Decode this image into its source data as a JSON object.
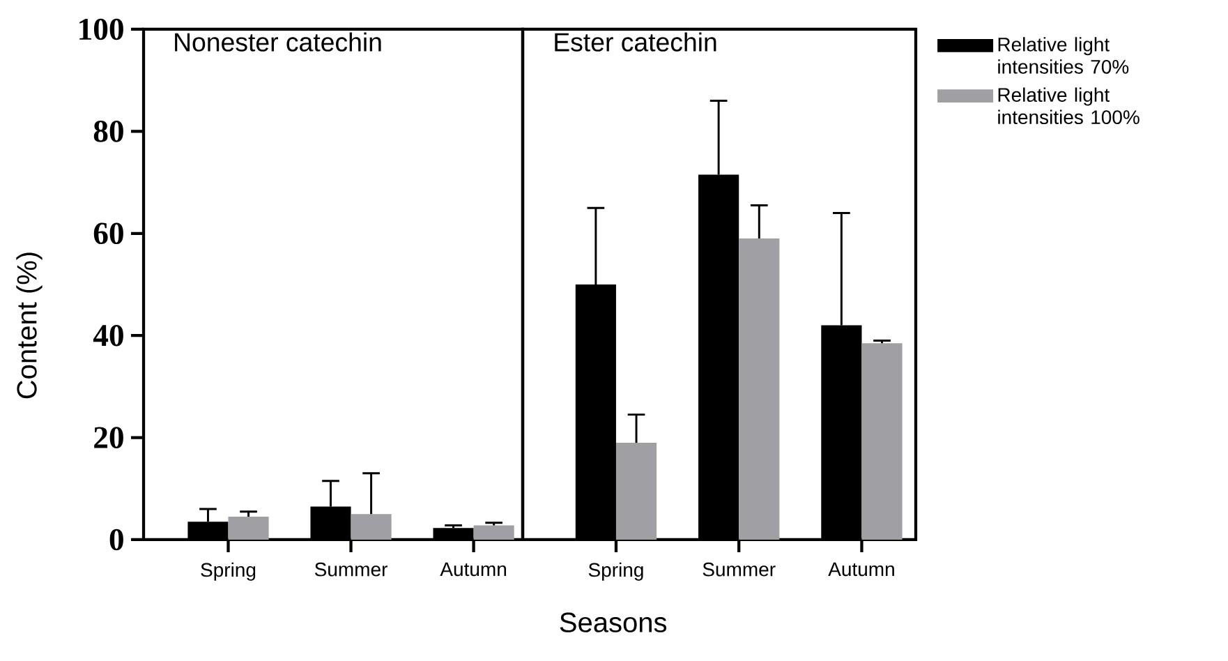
{
  "chart_data": [
    {
      "type": "bar",
      "title": "Nonester catechin",
      "ylabel": "Content (%)",
      "categories": [
        "Spring",
        "Summer",
        "Autumn"
      ],
      "series": [
        {
          "color": "#000000",
          "values": [
            3.5,
            6.5,
            2.3
          ],
          "errors": [
            [
              3.5,
              6
            ],
            [
              6.5,
              11.5
            ],
            [
              2.3,
              2.8
            ]
          ]
        },
        {
          "color": "#a0a0a4",
          "values": [
            4.5,
            5,
            2.8
          ],
          "errors": [
            [
              4.5,
              5.5
            ],
            [
              5,
              13
            ],
            [
              2.8,
              3.3
            ]
          ]
        }
      ],
      "ylim": [
        0,
        100
      ],
      "yticks": [
        0,
        20,
        40,
        60,
        80,
        100
      ],
      "grid": false,
      "legend": false
    },
    {
      "type": "bar",
      "title": "Ester catechin",
      "xlabel": "Seasons",
      "categories": [
        "Spring",
        "Summer",
        "Autumn"
      ],
      "series": [
        {
          "name": "Relative light intensities 70%",
          "color": "#000000",
          "values": [
            50,
            71.5,
            42
          ],
          "errors": [
            [
              50,
              65
            ],
            [
              71.5,
              86
            ],
            [
              42,
              64
            ]
          ]
        },
        {
          "name": "Relative light intensities 100%",
          "color": "#a0a0a4",
          "values": [
            19,
            59,
            38.5
          ],
          "errors": [
            [
              19,
              24.5
            ],
            [
              59,
              65.5
            ],
            [
              38.5,
              39
            ]
          ]
        }
      ],
      "ylim": [
        0,
        100
      ],
      "yticks": [
        0,
        20,
        40,
        60,
        80,
        100
      ],
      "tick_labels": "x",
      "grid": false,
      "legend": "right"
    }
  ]
}
